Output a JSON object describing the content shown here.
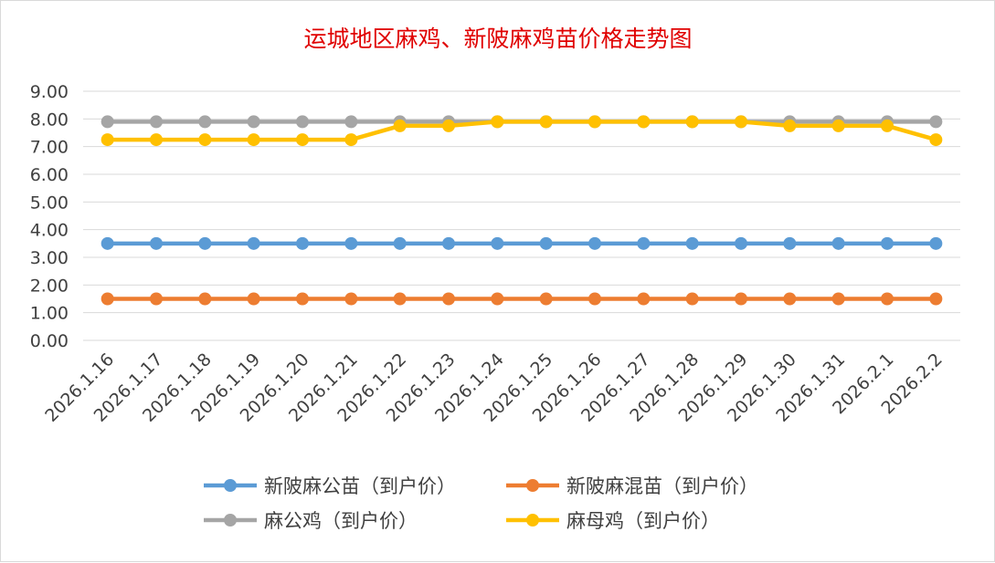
{
  "chart_data": {
    "type": "line",
    "title": "运城地区麻鸡、新陂麻鸡苗价格走势图",
    "categories": [
      "2026.1.16",
      "2026.1.17",
      "2026.1.18",
      "2026.1.19",
      "2026.1.20",
      "2026.1.21",
      "2026.1.22",
      "2026.1.23",
      "2026.1.24",
      "2026.1.25",
      "2026.1.26",
      "2026.1.27",
      "2026.1.28",
      "2026.1.29",
      "2026.1.30",
      "2026.1.31",
      "2026.2.1",
      "2026.2.2"
    ],
    "yticks": [
      "0.00",
      "1.00",
      "2.00",
      "3.00",
      "4.00",
      "5.00",
      "6.00",
      "7.00",
      "8.00",
      "9.00"
    ],
    "ylim": [
      0,
      9
    ],
    "grid": true,
    "legend_position": "bottom",
    "series": [
      {
        "name": "新陂麻公苗（到户价）",
        "color": "#5b9bd5",
        "values": [
          3.5,
          3.5,
          3.5,
          3.5,
          3.5,
          3.5,
          3.5,
          3.5,
          3.5,
          3.5,
          3.5,
          3.5,
          3.5,
          3.5,
          3.5,
          3.5,
          3.5,
          3.5
        ]
      },
      {
        "name": "新陂麻混苗（到户价）",
        "color": "#ed7d31",
        "values": [
          1.5,
          1.5,
          1.5,
          1.5,
          1.5,
          1.5,
          1.5,
          1.5,
          1.5,
          1.5,
          1.5,
          1.5,
          1.5,
          1.5,
          1.5,
          1.5,
          1.5,
          1.5
        ]
      },
      {
        "name": "麻公鸡（到户价）",
        "color": "#a5a5a5",
        "values": [
          7.9,
          7.9,
          7.9,
          7.9,
          7.9,
          7.9,
          7.9,
          7.9,
          7.9,
          7.9,
          7.9,
          7.9,
          7.9,
          7.9,
          7.9,
          7.9,
          7.9,
          7.9
        ]
      },
      {
        "name": "麻母鸡（到户价）",
        "color": "#ffc000",
        "values": [
          7.25,
          7.25,
          7.25,
          7.25,
          7.25,
          7.25,
          7.75,
          7.75,
          7.9,
          7.9,
          7.9,
          7.9,
          7.9,
          7.9,
          7.75,
          7.75,
          7.75,
          7.25
        ]
      }
    ]
  }
}
